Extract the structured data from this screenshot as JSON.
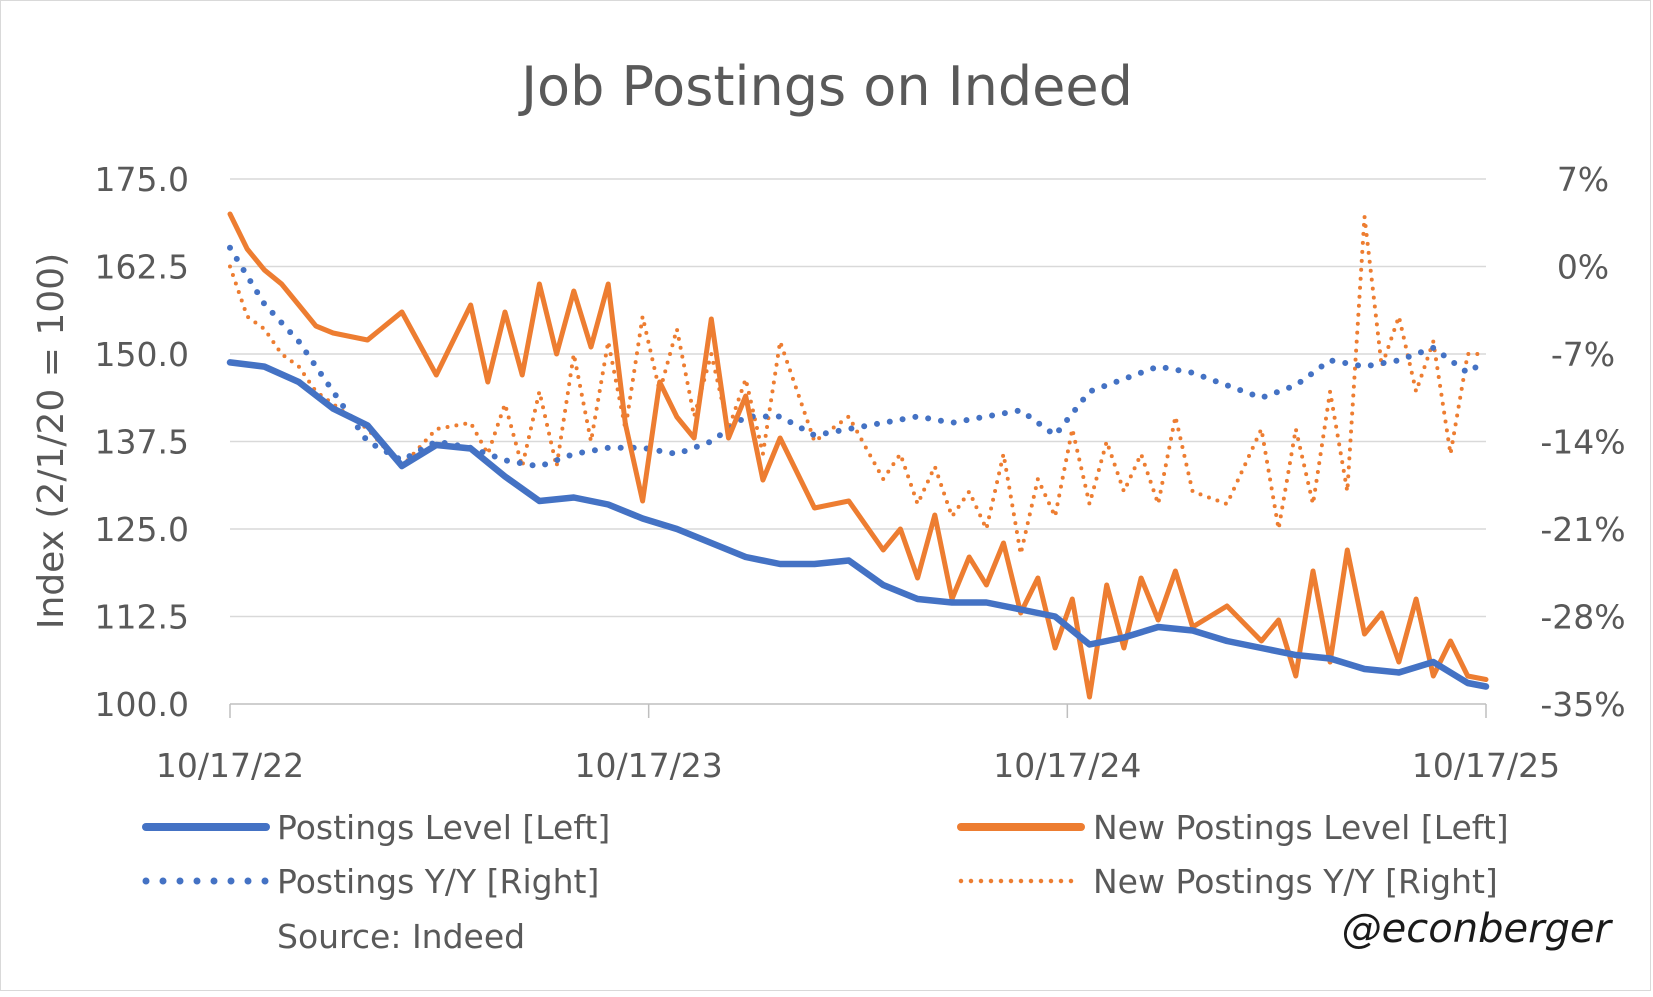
{
  "chart_data": {
    "type": "line",
    "title": "Job Postings on Indeed",
    "ylabel": "Index (2/1/20 = 100)",
    "ylim_left": [
      100,
      175
    ],
    "yticks_left": [
      "175.0",
      "162.5",
      "150.0",
      "137.5",
      "125.0",
      "112.5",
      "100.0"
    ],
    "ylim_right": [
      -35,
      7
    ],
    "yticks_right": [
      "7%",
      "0%",
      "-7%",
      "-14%",
      "-21%",
      "-28%",
      "-35%"
    ],
    "x_range": [
      "2022-10-17",
      "2025-10-17"
    ],
    "xticks": [
      "10/17/22",
      "10/17/23",
      "10/17/24",
      "10/17/25"
    ],
    "grid": true,
    "legend_position": "bottom",
    "source": "Source: Indeed",
    "watermark": "@econberger",
    "series": [
      {
        "name": "Postings Level [Left]",
        "axis": "left",
        "style": "solid",
        "color": "#4472C4",
        "x": [
          "2022-10-17",
          "2022-11-16",
          "2022-12-16",
          "2023-01-15",
          "2023-02-14",
          "2023-03-16",
          "2023-04-15",
          "2023-05-15",
          "2023-06-14",
          "2023-07-14",
          "2023-08-13",
          "2023-09-12",
          "2023-10-12",
          "2023-11-11",
          "2023-12-11",
          "2024-01-10",
          "2024-02-09",
          "2024-03-10",
          "2024-04-09",
          "2024-05-09",
          "2024-06-08",
          "2024-07-08",
          "2024-08-07",
          "2024-09-06",
          "2024-10-06",
          "2024-11-05",
          "2024-12-05",
          "2025-01-04",
          "2025-02-03",
          "2025-03-05",
          "2025-04-04",
          "2025-05-04",
          "2025-06-03",
          "2025-07-03",
          "2025-08-02",
          "2025-09-01",
          "2025-10-01",
          "2025-10-17"
        ],
        "values": [
          148.8,
          148.2,
          146.0,
          142.2,
          139.8,
          134.0,
          137.0,
          136.5,
          132.5,
          129.0,
          129.5,
          128.5,
          126.5,
          125.0,
          123.0,
          121.0,
          120.0,
          120.0,
          120.5,
          117.0,
          115.0,
          114.5,
          114.5,
          113.5,
          112.5,
          108.5,
          109.5,
          111.0,
          110.5,
          109.0,
          108.0,
          107.0,
          106.5,
          105.0,
          104.5,
          106.0,
          103.0,
          102.5
        ]
      },
      {
        "name": "New Postings Level [Left]",
        "axis": "left",
        "style": "solid",
        "color": "#ED7D31",
        "x": [
          "2022-10-17",
          "2022-11-01",
          "2022-11-16",
          "2022-12-01",
          "2022-12-16",
          "2022-12-31",
          "2023-01-15",
          "2023-02-14",
          "2023-03-16",
          "2023-04-15",
          "2023-05-15",
          "2023-05-30",
          "2023-06-14",
          "2023-06-29",
          "2023-07-14",
          "2023-07-29",
          "2023-08-13",
          "2023-08-28",
          "2023-09-12",
          "2023-09-27",
          "2023-10-12",
          "2023-10-27",
          "2023-11-11",
          "2023-11-26",
          "2023-12-11",
          "2023-12-26",
          "2024-01-10",
          "2024-01-25",
          "2024-02-09",
          "2024-03-10",
          "2024-04-09",
          "2024-05-09",
          "2024-05-24",
          "2024-06-08",
          "2024-06-23",
          "2024-07-08",
          "2024-07-23",
          "2024-08-07",
          "2024-08-22",
          "2024-09-06",
          "2024-09-21",
          "2024-10-06",
          "2024-10-21",
          "2024-11-05",
          "2024-11-20",
          "2024-12-05",
          "2024-12-20",
          "2025-01-04",
          "2025-01-19",
          "2025-02-03",
          "2025-03-05",
          "2025-04-04",
          "2025-04-19",
          "2025-05-04",
          "2025-05-19",
          "2025-06-03",
          "2025-06-18",
          "2025-07-03",
          "2025-07-18",
          "2025-08-02",
          "2025-08-17",
          "2025-09-01",
          "2025-09-16",
          "2025-10-01",
          "2025-10-17"
        ],
        "values": [
          170.0,
          165.0,
          162.0,
          160.0,
          157.0,
          154.0,
          153.0,
          152.0,
          156.0,
          147.0,
          157.0,
          146.0,
          156.0,
          147.0,
          160.0,
          150.0,
          159.0,
          151.0,
          160.0,
          140.0,
          129.0,
          146.0,
          141.0,
          138.0,
          155.0,
          138.0,
          144.0,
          132.0,
          138.0,
          128.0,
          129.0,
          122.0,
          125.0,
          118.0,
          127.0,
          115.0,
          121.0,
          117.0,
          123.0,
          113.0,
          118.0,
          108.0,
          115.0,
          101.0,
          117.0,
          108.0,
          118.0,
          112.0,
          119.0,
          111.0,
          114.0,
          109.0,
          112.0,
          104.0,
          119.0,
          106.0,
          122.0,
          110.0,
          113.0,
          106.0,
          115.0,
          104.0,
          109.0,
          104.0,
          103.5
        ]
      },
      {
        "name": "Postings Y/Y [Right]",
        "axis": "right",
        "style": "dotted",
        "color": "#4472C4",
        "x": [
          "2022-10-17",
          "2022-11-16",
          "2022-12-16",
          "2023-01-15",
          "2023-02-14",
          "2023-03-16",
          "2023-04-15",
          "2023-05-15",
          "2023-06-14",
          "2023-07-14",
          "2023-08-13",
          "2023-09-12",
          "2023-10-12",
          "2023-11-11",
          "2023-12-11",
          "2024-01-10",
          "2024-02-09",
          "2024-03-10",
          "2024-04-09",
          "2024-05-09",
          "2024-06-08",
          "2024-07-08",
          "2024-08-07",
          "2024-09-06",
          "2024-10-06",
          "2024-11-05",
          "2024-12-05",
          "2025-01-04",
          "2025-02-03",
          "2025-03-05",
          "2025-04-04",
          "2025-05-04",
          "2025-06-03",
          "2025-07-03",
          "2025-08-02",
          "2025-09-01",
          "2025-10-01",
          "2025-10-17"
        ],
        "values": [
          1.5,
          -3.0,
          -6.0,
          -10.0,
          -14.0,
          -15.5,
          -14.0,
          -14.5,
          -15.5,
          -16.0,
          -15.0,
          -14.5,
          -14.5,
          -15.0,
          -14.0,
          -12.0,
          -12.0,
          -13.5,
          -13.0,
          -12.5,
          -12.0,
          -12.5,
          -12.0,
          -11.5,
          -13.5,
          -10.0,
          -9.0,
          -8.0,
          -8.5,
          -9.5,
          -10.5,
          -9.5,
          -7.5,
          -8.0,
          -7.5,
          -6.5,
          -8.5,
          -7.5
        ]
      },
      {
        "name": "New Postings Y/Y [Right]",
        "axis": "right",
        "style": "dotted",
        "color": "#ED7D31",
        "x": [
          "2022-10-17",
          "2022-11-01",
          "2022-11-16",
          "2022-12-01",
          "2022-12-16",
          "2022-12-31",
          "2023-01-15",
          "2023-02-14",
          "2023-03-16",
          "2023-04-15",
          "2023-05-15",
          "2023-05-30",
          "2023-06-14",
          "2023-06-29",
          "2023-07-14",
          "2023-07-29",
          "2023-08-13",
          "2023-08-28",
          "2023-09-12",
          "2023-09-27",
          "2023-10-12",
          "2023-10-27",
          "2023-11-11",
          "2023-11-26",
          "2023-12-11",
          "2023-12-26",
          "2024-01-10",
          "2024-01-25",
          "2024-02-09",
          "2024-03-10",
          "2024-04-09",
          "2024-05-09",
          "2024-05-24",
          "2024-06-08",
          "2024-06-23",
          "2024-07-08",
          "2024-07-23",
          "2024-08-07",
          "2024-08-22",
          "2024-09-06",
          "2024-09-21",
          "2024-10-06",
          "2024-10-21",
          "2024-11-05",
          "2024-11-20",
          "2024-12-05",
          "2024-12-20",
          "2025-01-04",
          "2025-01-19",
          "2025-02-03",
          "2025-03-05",
          "2025-04-04",
          "2025-04-19",
          "2025-05-04",
          "2025-05-19",
          "2025-06-03",
          "2025-06-18",
          "2025-07-03",
          "2025-07-18",
          "2025-08-02",
          "2025-08-17",
          "2025-09-01",
          "2025-09-16",
          "2025-10-01",
          "2025-10-17"
        ],
        "values": [
          0.0,
          -4.0,
          -5.0,
          -7.0,
          -8.0,
          -10.0,
          -11.0,
          -13.0,
          -16.0,
          -13.0,
          -12.5,
          -15.0,
          -11.0,
          -16.0,
          -10.0,
          -16.0,
          -7.0,
          -14.0,
          -6.0,
          -13.0,
          -4.0,
          -10.0,
          -5.0,
          -12.0,
          -7.0,
          -13.0,
          -9.0,
          -15.0,
          -6.0,
          -14.0,
          -12.0,
          -17.0,
          -15.0,
          -19.0,
          -16.0,
          -20.0,
          -18.0,
          -21.0,
          -15.0,
          -23.0,
          -17.0,
          -20.0,
          -13.0,
          -19.0,
          -14.0,
          -18.0,
          -15.0,
          -19.0,
          -12.0,
          -18.0,
          -19.0,
          -13.0,
          -21.0,
          -13.0,
          -19.0,
          -10.0,
          -18.0,
          4.0,
          -8.0,
          -4.0,
          -10.0,
          -6.0,
          -15.0,
          -7.0,
          -7.0
        ]
      }
    ]
  }
}
